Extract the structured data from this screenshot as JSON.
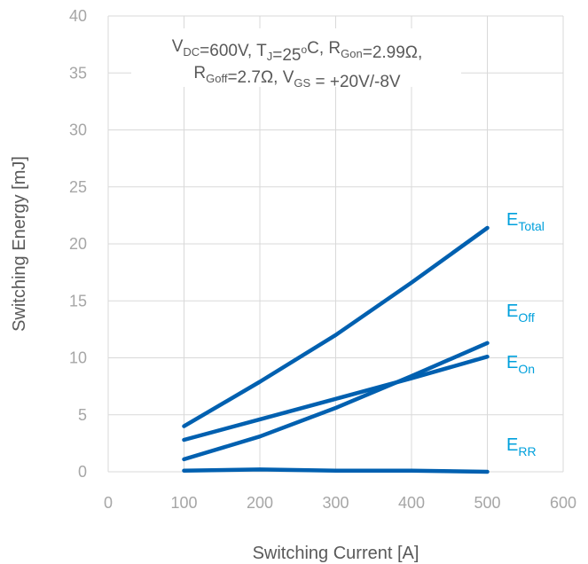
{
  "chart_data": {
    "type": "line",
    "title": "",
    "xlabel": "Switching Current [A]",
    "ylabel": "Switching Energy [mJ]",
    "xlim": [
      0,
      600
    ],
    "ylim": [
      0,
      40
    ],
    "x_ticks": [
      "0",
      "100",
      "200",
      "300",
      "400",
      "500",
      "600"
    ],
    "y_ticks": [
      "0",
      "5",
      "10",
      "15",
      "20",
      "25",
      "30",
      "35",
      "40"
    ],
    "grid": true,
    "line_color": "#0060b0",
    "label_color": "#00a0dc",
    "conditions": {
      "line1": [
        {
          "text": "V",
          "sub": "DC"
        },
        {
          "text": "=600V, T"
        },
        {
          "text": "",
          "sub": "J"
        },
        {
          "text": "=25"
        },
        {
          "text": "o",
          "sup": true
        },
        {
          "text": "C, R"
        },
        {
          "text": "",
          "sub": "Gon"
        },
        {
          "text": "=2.99Ω,"
        }
      ],
      "line2": [
        {
          "text": "R"
        },
        {
          "text": "",
          "sub": "Goff"
        },
        {
          "text": "=2.7Ω, V"
        },
        {
          "text": "",
          "sub": "GS"
        },
        {
          "text": " = +20V/-8V"
        }
      ]
    },
    "series": [
      {
        "label": "E",
        "sub": "Total",
        "x": [
          100,
          200,
          300,
          400,
          500
        ],
        "y": [
          4.0,
          7.9,
          12.0,
          16.6,
          21.4
        ]
      },
      {
        "label": "E",
        "sub": "Off",
        "x": [
          100,
          200,
          300,
          400,
          500
        ],
        "y": [
          1.1,
          3.1,
          5.6,
          8.4,
          11.3
        ]
      },
      {
        "label": "E",
        "sub": "On",
        "x": [
          100,
          200,
          300,
          400,
          500
        ],
        "y": [
          2.8,
          4.6,
          6.4,
          8.2,
          10.1
        ]
      },
      {
        "label": "E",
        "sub": "RR",
        "x": [
          100,
          200,
          300,
          400,
          500
        ],
        "y": [
          0.1,
          0.2,
          0.1,
          0.1,
          0.0
        ]
      }
    ]
  }
}
